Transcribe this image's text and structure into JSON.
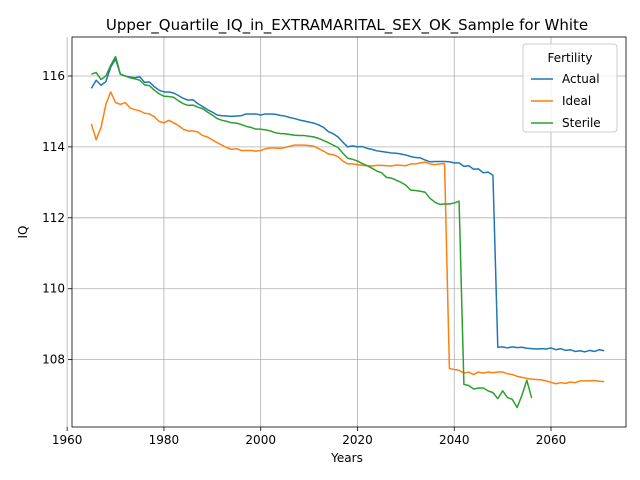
{
  "chart_data": {
    "type": "line",
    "title": "Upper_Quartile_IQ_in_EXTRAMARITAL_SEX_OK_Sample for White",
    "xlabel": "Years",
    "ylabel": "IQ",
    "xlim": [
      1961,
      2075.5
    ],
    "ylim": [
      106.1,
      117.1
    ],
    "xticks": [
      1960,
      1980,
      2000,
      2020,
      2040,
      2060
    ],
    "yticks": [
      108,
      110,
      112,
      114,
      116
    ],
    "grid": true,
    "legend": {
      "title": "Fertility",
      "placement": "top-right"
    },
    "series": [
      {
        "name": "Actual",
        "color": "#1f77b4",
        "points": [
          [
            1965,
            115.65
          ],
          [
            1966,
            115.88
          ],
          [
            1967,
            115.74
          ],
          [
            1968,
            115.84
          ],
          [
            1969,
            116.25
          ],
          [
            1970,
            116.48
          ],
          [
            1971,
            116.05
          ],
          [
            1972,
            116.0
          ],
          [
            1973,
            115.97
          ],
          [
            1974,
            115.95
          ],
          [
            1975,
            115.98
          ],
          [
            1976,
            115.82
          ],
          [
            1977,
            115.83
          ],
          [
            1978,
            115.7
          ],
          [
            1979,
            115.6
          ],
          [
            1980,
            115.55
          ],
          [
            1981,
            115.55
          ],
          [
            1982,
            115.52
          ],
          [
            1983,
            115.45
          ],
          [
            1984,
            115.37
          ],
          [
            1985,
            115.32
          ],
          [
            1986,
            115.33
          ],
          [
            1987,
            115.22
          ],
          [
            1988,
            115.14
          ],
          [
            1989,
            115.05
          ],
          [
            1990,
            114.98
          ],
          [
            1991,
            114.9
          ],
          [
            1992,
            114.88
          ],
          [
            1993,
            114.87
          ],
          [
            1994,
            114.86
          ],
          [
            1995,
            114.87
          ],
          [
            1996,
            114.88
          ],
          [
            1997,
            114.93
          ],
          [
            1998,
            114.93
          ],
          [
            1999,
            114.93
          ],
          [
            2000,
            114.9
          ],
          [
            2001,
            114.93
          ],
          [
            2002,
            114.93
          ],
          [
            2003,
            114.92
          ],
          [
            2004,
            114.89
          ],
          [
            2005,
            114.87
          ],
          [
            2006,
            114.83
          ],
          [
            2007,
            114.8
          ],
          [
            2008,
            114.76
          ],
          [
            2009,
            114.73
          ],
          [
            2010,
            114.7
          ],
          [
            2011,
            114.67
          ],
          [
            2012,
            114.62
          ],
          [
            2013,
            114.55
          ],
          [
            2014,
            114.43
          ],
          [
            2015,
            114.37
          ],
          [
            2016,
            114.28
          ],
          [
            2017,
            114.13
          ],
          [
            2018,
            114.0
          ],
          [
            2019,
            114.03
          ],
          [
            2020,
            114.0
          ],
          [
            2021,
            114.01
          ],
          [
            2022,
            113.96
          ],
          [
            2023,
            113.93
          ],
          [
            2024,
            113.89
          ],
          [
            2025,
            113.87
          ],
          [
            2026,
            113.85
          ],
          [
            2027,
            113.83
          ],
          [
            2028,
            113.82
          ],
          [
            2029,
            113.8
          ],
          [
            2030,
            113.77
          ],
          [
            2031,
            113.73
          ],
          [
            2032,
            113.7
          ],
          [
            2033,
            113.69
          ],
          [
            2034,
            113.63
          ],
          [
            2035,
            113.58
          ],
          [
            2036,
            113.59
          ],
          [
            2037,
            113.59
          ],
          [
            2038,
            113.59
          ],
          [
            2039,
            113.58
          ],
          [
            2040,
            113.55
          ],
          [
            2041,
            113.55
          ],
          [
            2042,
            113.45
          ],
          [
            2043,
            113.47
          ],
          [
            2044,
            113.37
          ],
          [
            2045,
            113.38
          ],
          [
            2046,
            113.27
          ],
          [
            2047,
            113.29
          ],
          [
            2048,
            113.2
          ],
          [
            2049,
            108.35
          ],
          [
            2050,
            108.36
          ],
          [
            2051,
            108.33
          ],
          [
            2052,
            108.36
          ],
          [
            2053,
            108.34
          ],
          [
            2054,
            108.35
          ],
          [
            2055,
            108.32
          ],
          [
            2056,
            108.31
          ],
          [
            2057,
            108.3
          ],
          [
            2058,
            108.31
          ],
          [
            2059,
            108.3
          ],
          [
            2060,
            108.33
          ],
          [
            2061,
            108.28
          ],
          [
            2062,
            108.31
          ],
          [
            2063,
            108.26
          ],
          [
            2064,
            108.28
          ],
          [
            2065,
            108.23
          ],
          [
            2066,
            108.25
          ],
          [
            2067,
            108.22
          ],
          [
            2068,
            108.26
          ],
          [
            2069,
            108.23
          ],
          [
            2070,
            108.28
          ],
          [
            2071,
            108.25
          ]
        ]
      },
      {
        "name": "Ideal",
        "color": "#ff7f0e",
        "points": [
          [
            1965,
            114.65
          ],
          [
            1966,
            114.2
          ],
          [
            1967,
            114.55
          ],
          [
            1968,
            115.2
          ],
          [
            1969,
            115.55
          ],
          [
            1970,
            115.25
          ],
          [
            1971,
            115.2
          ],
          [
            1972,
            115.25
          ],
          [
            1973,
            115.1
          ],
          [
            1974,
            115.05
          ],
          [
            1975,
            115.02
          ],
          [
            1976,
            114.95
          ],
          [
            1977,
            114.93
          ],
          [
            1978,
            114.85
          ],
          [
            1979,
            114.72
          ],
          [
            1980,
            114.68
          ],
          [
            1981,
            114.75
          ],
          [
            1982,
            114.68
          ],
          [
            1983,
            114.6
          ],
          [
            1984,
            114.5
          ],
          [
            1985,
            114.45
          ],
          [
            1986,
            114.45
          ],
          [
            1987,
            114.42
          ],
          [
            1988,
            114.32
          ],
          [
            1989,
            114.28
          ],
          [
            1990,
            114.2
          ],
          [
            1991,
            114.12
          ],
          [
            1992,
            114.05
          ],
          [
            1993,
            113.98
          ],
          [
            1994,
            113.93
          ],
          [
            1995,
            113.95
          ],
          [
            1996,
            113.9
          ],
          [
            1997,
            113.9
          ],
          [
            1998,
            113.9
          ],
          [
            1999,
            113.88
          ],
          [
            2000,
            113.9
          ],
          [
            2001,
            113.95
          ],
          [
            2002,
            113.97
          ],
          [
            2003,
            113.97
          ],
          [
            2004,
            113.96
          ],
          [
            2005,
            113.98
          ],
          [
            2006,
            114.02
          ],
          [
            2007,
            114.05
          ],
          [
            2008,
            114.05
          ],
          [
            2009,
            114.05
          ],
          [
            2010,
            114.04
          ],
          [
            2011,
            114.02
          ],
          [
            2012,
            113.95
          ],
          [
            2013,
            113.88
          ],
          [
            2014,
            113.8
          ],
          [
            2015,
            113.78
          ],
          [
            2016,
            113.72
          ],
          [
            2017,
            113.6
          ],
          [
            2018,
            113.52
          ],
          [
            2019,
            113.52
          ],
          [
            2020,
            113.5
          ],
          [
            2021,
            113.48
          ],
          [
            2022,
            113.47
          ],
          [
            2023,
            113.46
          ],
          [
            2024,
            113.48
          ],
          [
            2025,
            113.48
          ],
          [
            2026,
            113.47
          ],
          [
            2027,
            113.46
          ],
          [
            2028,
            113.49
          ],
          [
            2029,
            113.48
          ],
          [
            2030,
            113.47
          ],
          [
            2031,
            113.52
          ],
          [
            2032,
            113.52
          ],
          [
            2033,
            113.55
          ],
          [
            2034,
            113.57
          ],
          [
            2035,
            113.52
          ],
          [
            2036,
            113.5
          ],
          [
            2037,
            113.52
          ],
          [
            2038,
            113.53
          ],
          [
            2039,
            107.75
          ],
          [
            2040,
            107.72
          ],
          [
            2041,
            107.7
          ],
          [
            2042,
            107.62
          ],
          [
            2043,
            107.65
          ],
          [
            2044,
            107.58
          ],
          [
            2045,
            107.65
          ],
          [
            2046,
            107.62
          ],
          [
            2047,
            107.65
          ],
          [
            2048,
            107.63
          ],
          [
            2049,
            107.65
          ],
          [
            2050,
            107.65
          ],
          [
            2051,
            107.6
          ],
          [
            2052,
            107.58
          ],
          [
            2053,
            107.53
          ],
          [
            2054,
            107.5
          ],
          [
            2055,
            107.47
          ],
          [
            2056,
            107.45
          ],
          [
            2057,
            107.44
          ],
          [
            2058,
            107.43
          ],
          [
            2059,
            107.4
          ],
          [
            2060,
            107.36
          ],
          [
            2061,
            107.32
          ],
          [
            2062,
            107.35
          ],
          [
            2063,
            107.33
          ],
          [
            2064,
            107.37
          ],
          [
            2065,
            107.35
          ],
          [
            2066,
            107.4
          ],
          [
            2067,
            107.4
          ],
          [
            2068,
            107.4
          ],
          [
            2069,
            107.41
          ],
          [
            2070,
            107.39
          ],
          [
            2071,
            107.38
          ]
        ]
      },
      {
        "name": "Sterile",
        "color": "#2ca02c",
        "points": [
          [
            1965,
            116.05
          ],
          [
            1966,
            116.1
          ],
          [
            1967,
            115.9
          ],
          [
            1968,
            116.0
          ],
          [
            1969,
            116.3
          ],
          [
            1970,
            116.55
          ],
          [
            1971,
            116.05
          ],
          [
            1972,
            116.0
          ],
          [
            1973,
            115.95
          ],
          [
            1974,
            115.92
          ],
          [
            1975,
            115.88
          ],
          [
            1976,
            115.75
          ],
          [
            1977,
            115.73
          ],
          [
            1978,
            115.6
          ],
          [
            1979,
            115.5
          ],
          [
            1980,
            115.43
          ],
          [
            1981,
            115.42
          ],
          [
            1982,
            115.4
          ],
          [
            1983,
            115.3
          ],
          [
            1984,
            115.22
          ],
          [
            1985,
            115.17
          ],
          [
            1986,
            115.18
          ],
          [
            1987,
            115.12
          ],
          [
            1988,
            115.08
          ],
          [
            1989,
            114.98
          ],
          [
            1990,
            114.9
          ],
          [
            1991,
            114.8
          ],
          [
            1992,
            114.75
          ],
          [
            1993,
            114.72
          ],
          [
            1994,
            114.68
          ],
          [
            1995,
            114.67
          ],
          [
            1996,
            114.63
          ],
          [
            1997,
            114.58
          ],
          [
            1998,
            114.55
          ],
          [
            1999,
            114.5
          ],
          [
            2000,
            114.5
          ],
          [
            2001,
            114.48
          ],
          [
            2002,
            114.45
          ],
          [
            2003,
            114.4
          ],
          [
            2004,
            114.38
          ],
          [
            2005,
            114.37
          ],
          [
            2006,
            114.35
          ],
          [
            2007,
            114.33
          ],
          [
            2008,
            114.32
          ],
          [
            2009,
            114.32
          ],
          [
            2010,
            114.3
          ],
          [
            2011,
            114.28
          ],
          [
            2012,
            114.24
          ],
          [
            2013,
            114.18
          ],
          [
            2014,
            114.12
          ],
          [
            2015,
            114.05
          ],
          [
            2016,
            113.98
          ],
          [
            2017,
            113.82
          ],
          [
            2018,
            113.68
          ],
          [
            2019,
            113.65
          ],
          [
            2020,
            113.6
          ],
          [
            2021,
            113.53
          ],
          [
            2022,
            113.47
          ],
          [
            2023,
            113.4
          ],
          [
            2024,
            113.32
          ],
          [
            2025,
            113.27
          ],
          [
            2026,
            113.14
          ],
          [
            2027,
            113.12
          ],
          [
            2028,
            113.06
          ],
          [
            2029,
            113.0
          ],
          [
            2030,
            112.92
          ],
          [
            2031,
            112.78
          ],
          [
            2032,
            112.77
          ],
          [
            2033,
            112.75
          ],
          [
            2034,
            112.72
          ],
          [
            2035,
            112.55
          ],
          [
            2036,
            112.44
          ],
          [
            2037,
            112.38
          ],
          [
            2038,
            112.39
          ],
          [
            2039,
            112.39
          ],
          [
            2040,
            112.42
          ],
          [
            2041,
            112.47
          ],
          [
            2042,
            107.3
          ],
          [
            2043,
            107.27
          ],
          [
            2044,
            107.17
          ],
          [
            2045,
            107.2
          ],
          [
            2046,
            107.2
          ],
          [
            2047,
            107.12
          ],
          [
            2048,
            107.07
          ],
          [
            2049,
            106.9
          ],
          [
            2050,
            107.12
          ],
          [
            2051,
            106.93
          ],
          [
            2052,
            106.88
          ],
          [
            2053,
            106.65
          ],
          [
            2054,
            107.0
          ],
          [
            2055,
            107.42
          ],
          [
            2056,
            106.92
          ]
        ]
      }
    ]
  }
}
